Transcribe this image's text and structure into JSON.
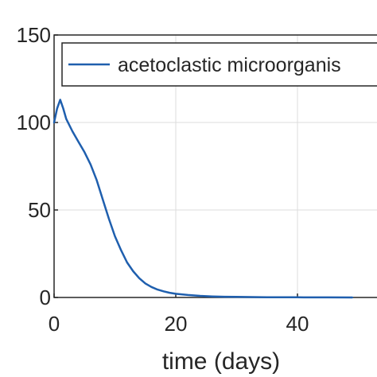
{
  "chart_data": {
    "type": "line",
    "title": "",
    "xlabel": "time (days)",
    "ylabel": "",
    "xlim": [
      0,
      50
    ],
    "ylim": [
      0,
      150
    ],
    "xticks": [
      "0",
      "20",
      "40"
    ],
    "yticks": [
      "0",
      "50",
      "100",
      "150"
    ],
    "grid": true,
    "legend": "top",
    "series": [
      {
        "name": "acetoclastic microorganis",
        "color": "#1f5fae",
        "x": [
          0,
          0.5,
          1,
          1.5,
          2,
          3,
          4,
          5,
          6,
          7,
          8,
          9,
          10,
          11,
          12,
          13,
          14,
          15,
          16,
          17,
          18,
          19,
          20,
          22,
          24,
          26,
          28,
          30,
          35,
          40,
          45,
          49
        ],
        "y": [
          100,
          108,
          113,
          108,
          102,
          95,
          89,
          83,
          76,
          67,
          56,
          45,
          35,
          27,
          20,
          15,
          11,
          8,
          6,
          4.5,
          3.5,
          2.7,
          2.1,
          1.4,
          0.9,
          0.6,
          0.4,
          0.3,
          0.15,
          0.08,
          0.04,
          0.02
        ]
      }
    ]
  }
}
